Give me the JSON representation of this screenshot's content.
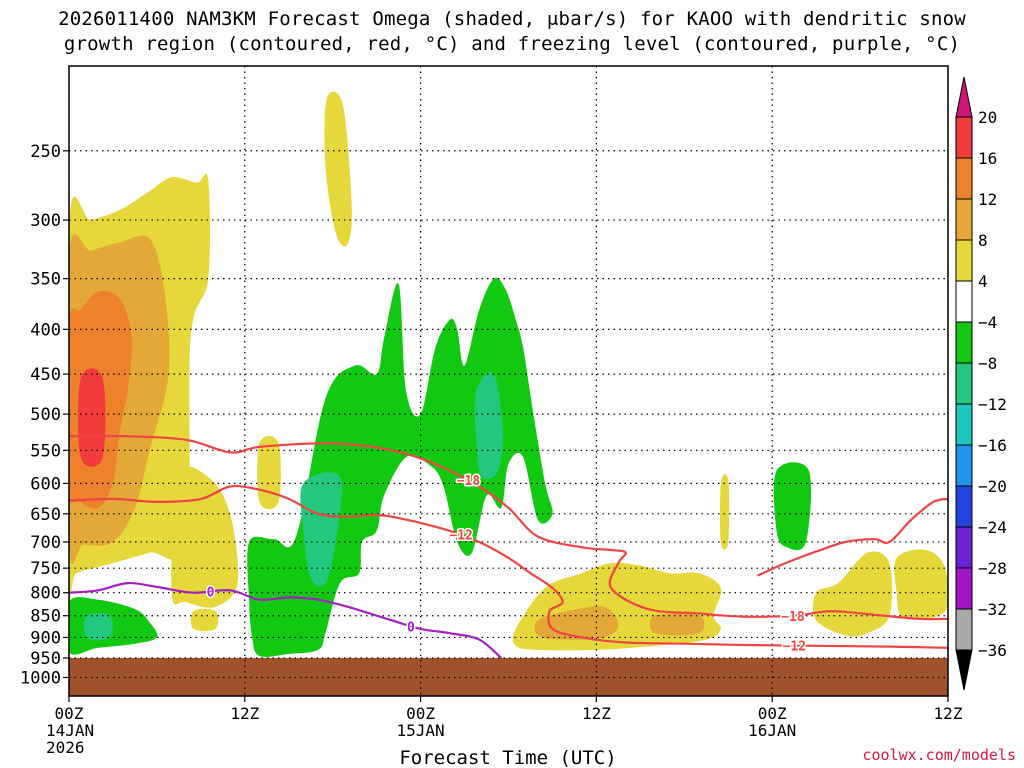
{
  "title_line1": "2026011400 NAM3KM Forecast Omega (shaded, μbar/s) for KAOO with dendritic snow",
  "title_line2": "growth region (contoured, red, °C) and freezing level (contoured, purple, °C)",
  "credit": "coolwx.com/models",
  "chart_data": {
    "type": "heatmap",
    "title": "2026011400 NAM3KM Forecast Omega (shaded, μbar/s) for KAOO with dendritic snow growth region (contoured, red, °C) and freezing level (contoured, purple, °C)",
    "xlabel": "Forecast Time (UTC)",
    "ylabel": "",
    "x_range_hours": [
      0,
      60
    ],
    "y_axis": "pressure (hPa), log scale, inverted",
    "ylim": [
      1050,
      200
    ],
    "grid": true,
    "x_ticks": [
      {
        "hour": 0,
        "labels": [
          "00Z",
          "14JAN",
          "2026"
        ]
      },
      {
        "hour": 12,
        "labels": [
          "12Z"
        ]
      },
      {
        "hour": 24,
        "labels": [
          "00Z",
          "15JAN"
        ]
      },
      {
        "hour": 36,
        "labels": [
          "12Z"
        ]
      },
      {
        "hour": 48,
        "labels": [
          "00Z",
          "16JAN"
        ]
      },
      {
        "hour": 60,
        "labels": [
          "12Z"
        ]
      }
    ],
    "y_ticks": [
      250,
      300,
      350,
      400,
      450,
      500,
      550,
      600,
      650,
      700,
      750,
      800,
      850,
      900,
      950,
      1000
    ],
    "ground_pressure": 950,
    "colorbar": {
      "labels": [
        "20",
        "16",
        "12",
        "8",
        "4",
        "−4",
        "−8",
        "−12",
        "−16",
        "−20",
        "−24",
        "−28",
        "−32",
        "−36"
      ],
      "bins": [
        {
          "from": 20,
          "to": 99,
          "color": "#d0157a"
        },
        {
          "from": 16,
          "to": 20,
          "color": "#f23b3b"
        },
        {
          "from": 12,
          "to": 16,
          "color": "#ee822c"
        },
        {
          "from": 8,
          "to": 12,
          "color": "#e4a838"
        },
        {
          "from": 4,
          "to": 8,
          "color": "#e6d83a"
        },
        {
          "from": -4,
          "to": 4,
          "color": "#ffffff"
        },
        {
          "from": -8,
          "to": -4,
          "color": "#12c912"
        },
        {
          "from": -12,
          "to": -8,
          "color": "#22c87e"
        },
        {
          "from": -16,
          "to": -12,
          "color": "#1ec7c0"
        },
        {
          "from": -20,
          "to": -16,
          "color": "#1f93ec"
        },
        {
          "from": -24,
          "to": -20,
          "color": "#2143e0"
        },
        {
          "from": -28,
          "to": -24,
          "color": "#6b22d6"
        },
        {
          "from": -32,
          "to": -28,
          "color": "#a214c8"
        },
        {
          "from": -36,
          "to": -32,
          "color": "#a9a9a9"
        },
        {
          "from": -99,
          "to": -36,
          "color": "#000000"
        }
      ]
    },
    "omega_regions": [
      {
        "omega": 6,
        "points": [
          [
            0,
            303
          ],
          [
            1.5,
            300
          ],
          [
            3.5,
            292
          ],
          [
            5.5,
            278
          ],
          [
            7,
            268
          ],
          [
            8.7,
            272
          ],
          [
            9.5,
            270
          ],
          [
            9.5,
            350
          ],
          [
            8.3,
            410
          ],
          [
            8,
            700
          ],
          [
            5.5,
            720
          ],
          [
            3,
            740
          ],
          [
            0.5,
            760
          ],
          [
            0,
            780
          ]
        ]
      },
      {
        "omega": 10,
        "points": [
          [
            0,
            330
          ],
          [
            1.5,
            325
          ],
          [
            3.5,
            318
          ],
          [
            5.5,
            315
          ],
          [
            6.5,
            360
          ],
          [
            6.8,
            450
          ],
          [
            5.5,
            550
          ],
          [
            4.5,
            640
          ],
          [
            3,
            700
          ],
          [
            1,
            705
          ],
          [
            0,
            700
          ]
        ]
      },
      {
        "omega": 14,
        "points": [
          [
            0,
            395
          ],
          [
            0.8,
            380
          ],
          [
            2,
            362
          ],
          [
            3.5,
            370
          ],
          [
            4.3,
            410
          ],
          [
            4,
            470
          ],
          [
            3.5,
            520
          ],
          [
            3,
            600
          ],
          [
            2,
            640
          ],
          [
            0.8,
            630
          ],
          [
            0,
            600
          ]
        ]
      },
      {
        "omega": 18,
        "points": [
          [
            0.8,
            455
          ],
          [
            2.3,
            455
          ],
          [
            2.3,
            560
          ],
          [
            0.8,
            560
          ]
        ]
      },
      {
        "omega": 6,
        "points": [
          [
            17.6,
            218
          ],
          [
            18.7,
            222
          ],
          [
            19.3,
            290
          ],
          [
            19,
            320
          ],
          [
            18.2,
            310
          ],
          [
            17.5,
            260
          ]
        ]
      },
      {
        "omega": 6,
        "points": [
          [
            13,
            540
          ],
          [
            14.3,
            540
          ],
          [
            14.3,
            630
          ],
          [
            13,
            630
          ]
        ]
      },
      {
        "omega": 6,
        "points": [
          [
            7.5,
            590
          ],
          [
            9.5,
            590
          ],
          [
            11,
            650
          ],
          [
            11.5,
            780
          ],
          [
            10,
            830
          ],
          [
            8,
            820
          ],
          [
            7,
            800
          ]
        ]
      },
      {
        "omega": 6,
        "points": [
          [
            8.5,
            840
          ],
          [
            10,
            840
          ],
          [
            10,
            880
          ],
          [
            8.5,
            880
          ]
        ]
      },
      {
        "omega": -6,
        "points": [
          [
            0,
            820
          ],
          [
            2,
            815
          ],
          [
            4.5,
            835
          ],
          [
            5.5,
            865
          ],
          [
            6,
            900
          ],
          [
            4.5,
            915
          ],
          [
            2,
            925
          ],
          [
            0,
            935
          ]
        ]
      },
      {
        "omega": -10,
        "points": [
          [
            1.2,
            850
          ],
          [
            2.8,
            850
          ],
          [
            2.8,
            900
          ],
          [
            1.2,
            900
          ]
        ]
      },
      {
        "omega": -6,
        "points": [
          [
            12.3,
            700
          ],
          [
            14,
            695
          ],
          [
            15.5,
            690
          ],
          [
            17.5,
            480
          ],
          [
            19.5,
            440
          ],
          [
            21,
            450
          ],
          [
            21.5,
            410
          ],
          [
            22.5,
            355
          ],
          [
            23,
            470
          ],
          [
            24,
            500
          ],
          [
            25,
            420
          ],
          [
            26,
            390
          ],
          [
            26.5,
            400
          ],
          [
            27,
            440
          ],
          [
            28,
            380
          ],
          [
            29,
            350
          ],
          [
            29.8,
            360
          ],
          [
            30.5,
            390
          ],
          [
            31,
            420
          ],
          [
            31.7,
            500
          ],
          [
            32.5,
            600
          ],
          [
            33,
            650
          ],
          [
            32,
            660
          ],
          [
            31,
            560
          ],
          [
            30,
            570
          ],
          [
            29.5,
            640
          ],
          [
            28.5,
            620
          ],
          [
            27.5,
            720
          ],
          [
            26.5,
            700
          ],
          [
            25.5,
            600
          ],
          [
            24.5,
            570
          ],
          [
            23,
            560
          ],
          [
            21.5,
            620
          ],
          [
            21,
            680
          ],
          [
            20,
            700
          ],
          [
            19.8,
            760
          ],
          [
            18.5,
            780
          ],
          [
            17.5,
            890
          ],
          [
            17,
            930
          ],
          [
            15,
            940
          ],
          [
            13,
            945
          ],
          [
            12.5,
            900
          ],
          [
            12.3,
            820
          ]
        ]
      },
      {
        "omega": -10,
        "points": [
          [
            16,
            600
          ],
          [
            18.5,
            590
          ],
          [
            18.2,
            700
          ],
          [
            17.5,
            780
          ],
          [
            16.5,
            770
          ],
          [
            16,
            680
          ]
        ]
      },
      {
        "omega": -10,
        "points": [
          [
            27.8,
            470
          ],
          [
            29,
            450
          ],
          [
            29.6,
            520
          ],
          [
            29.3,
            580
          ],
          [
            28.2,
            590
          ],
          [
            27.8,
            540
          ]
        ]
      },
      {
        "omega": -6,
        "points": [
          [
            48.3,
            580
          ],
          [
            50.5,
            580
          ],
          [
            50.3,
            700
          ],
          [
            49,
            710
          ],
          [
            48.3,
            680
          ]
        ]
      },
      {
        "omega": 6,
        "points": [
          [
            30.5,
            880
          ],
          [
            32.5,
            790
          ],
          [
            35,
            760
          ],
          [
            37,
            740
          ],
          [
            39,
            745
          ],
          [
            41,
            760
          ],
          [
            43,
            760
          ],
          [
            44.5,
            790
          ],
          [
            44,
            850
          ],
          [
            44.5,
            880
          ],
          [
            43.5,
            905
          ],
          [
            40,
            920
          ],
          [
            36,
            930
          ],
          [
            32,
            930
          ],
          [
            30.5,
            920
          ]
        ]
      },
      {
        "omega": 10,
        "points": [
          [
            32,
            860
          ],
          [
            34,
            840
          ],
          [
            36.5,
            830
          ],
          [
            37.5,
            870
          ],
          [
            36.5,
            900
          ],
          [
            33.5,
            905
          ],
          [
            32,
            895
          ]
        ]
      },
      {
        "omega": 10,
        "points": [
          [
            40,
            850
          ],
          [
            43,
            850
          ],
          [
            43,
            890
          ],
          [
            40,
            890
          ]
        ]
      },
      {
        "omega": 6,
        "points": [
          [
            51,
            800
          ],
          [
            52.5,
            780
          ],
          [
            54.5,
            720
          ],
          [
            56,
            740
          ],
          [
            56,
            850
          ],
          [
            54.5,
            890
          ],
          [
            53,
            895
          ],
          [
            51,
            860
          ]
        ]
      },
      {
        "omega": 6,
        "points": [
          [
            56.5,
            730
          ],
          [
            58.5,
            715
          ],
          [
            59.8,
            750
          ],
          [
            59.8,
            840
          ],
          [
            57,
            855
          ],
          [
            56.5,
            800
          ]
        ]
      },
      {
        "omega": 6,
        "points": [
          [
            44.5,
            600
          ],
          [
            45,
            595
          ],
          [
            45,
            700
          ],
          [
            44.5,
            700
          ]
        ]
      }
    ],
    "contours": [
      {
        "label": "−18",
        "color": "#f04444",
        "points": [
          [
            0,
            530
          ],
          [
            4,
            530
          ],
          [
            8,
            535
          ],
          [
            11,
            553
          ],
          [
            13,
            545
          ],
          [
            17,
            540
          ],
          [
            20,
            543
          ],
          [
            23,
            555
          ],
          [
            25.5,
            575
          ],
          [
            28,
            605
          ],
          [
            30,
            640
          ],
          [
            32,
            690
          ],
          [
            35,
            710
          ],
          [
            37,
            715
          ],
          [
            38,
            720
          ],
          [
            37.5,
            740
          ],
          [
            37,
            790
          ],
          [
            39.5,
            835
          ],
          [
            43,
            845
          ],
          [
            46,
            852
          ],
          [
            49.5,
            850
          ],
          [
            52,
            840
          ],
          [
            55,
            848
          ],
          [
            58,
            857
          ],
          [
            60,
            857
          ]
        ]
      },
      {
        "label": "−12",
        "color": "#f04444",
        "points": [
          [
            0,
            628
          ],
          [
            3,
            625
          ],
          [
            6,
            630
          ],
          [
            9,
            625
          ],
          [
            11,
            605
          ],
          [
            13,
            610
          ],
          [
            15,
            625
          ],
          [
            17,
            650
          ],
          [
            19,
            655
          ],
          [
            21,
            652
          ],
          [
            23,
            660
          ],
          [
            26,
            680
          ],
          [
            28,
            700
          ],
          [
            30,
            730
          ],
          [
            31.5,
            760
          ],
          [
            33,
            790
          ],
          [
            33.7,
            820
          ],
          [
            32.8,
            840
          ],
          [
            33,
            880
          ],
          [
            35,
            900
          ],
          [
            38,
            912
          ],
          [
            42,
            915
          ],
          [
            46,
            918
          ],
          [
            51,
            920
          ],
          [
            56,
            922
          ],
          [
            60,
            925
          ]
        ]
      },
      {
        "label": "−12",
        "color": "#f04444",
        "points": [
          [
            47,
            765
          ],
          [
            48.5,
            745
          ],
          [
            50,
            728
          ],
          [
            51,
            718
          ],
          [
            53,
            700
          ],
          [
            55,
            695
          ],
          [
            56,
            700
          ],
          [
            57.5,
            660
          ],
          [
            59,
            630
          ],
          [
            60,
            625
          ]
        ]
      },
      {
        "label": "0",
        "color": "#a41fc6",
        "points": [
          [
            0,
            800
          ],
          [
            2,
            795
          ],
          [
            4,
            780
          ],
          [
            6,
            788
          ],
          [
            8.5,
            800
          ],
          [
            11,
            795
          ],
          [
            13,
            815
          ],
          [
            15,
            810
          ],
          [
            17,
            815
          ],
          [
            19,
            830
          ],
          [
            22,
            860
          ],
          [
            24,
            880
          ],
          [
            26,
            890
          ],
          [
            28,
            905
          ],
          [
            29.5,
            950
          ]
        ]
      }
    ]
  }
}
